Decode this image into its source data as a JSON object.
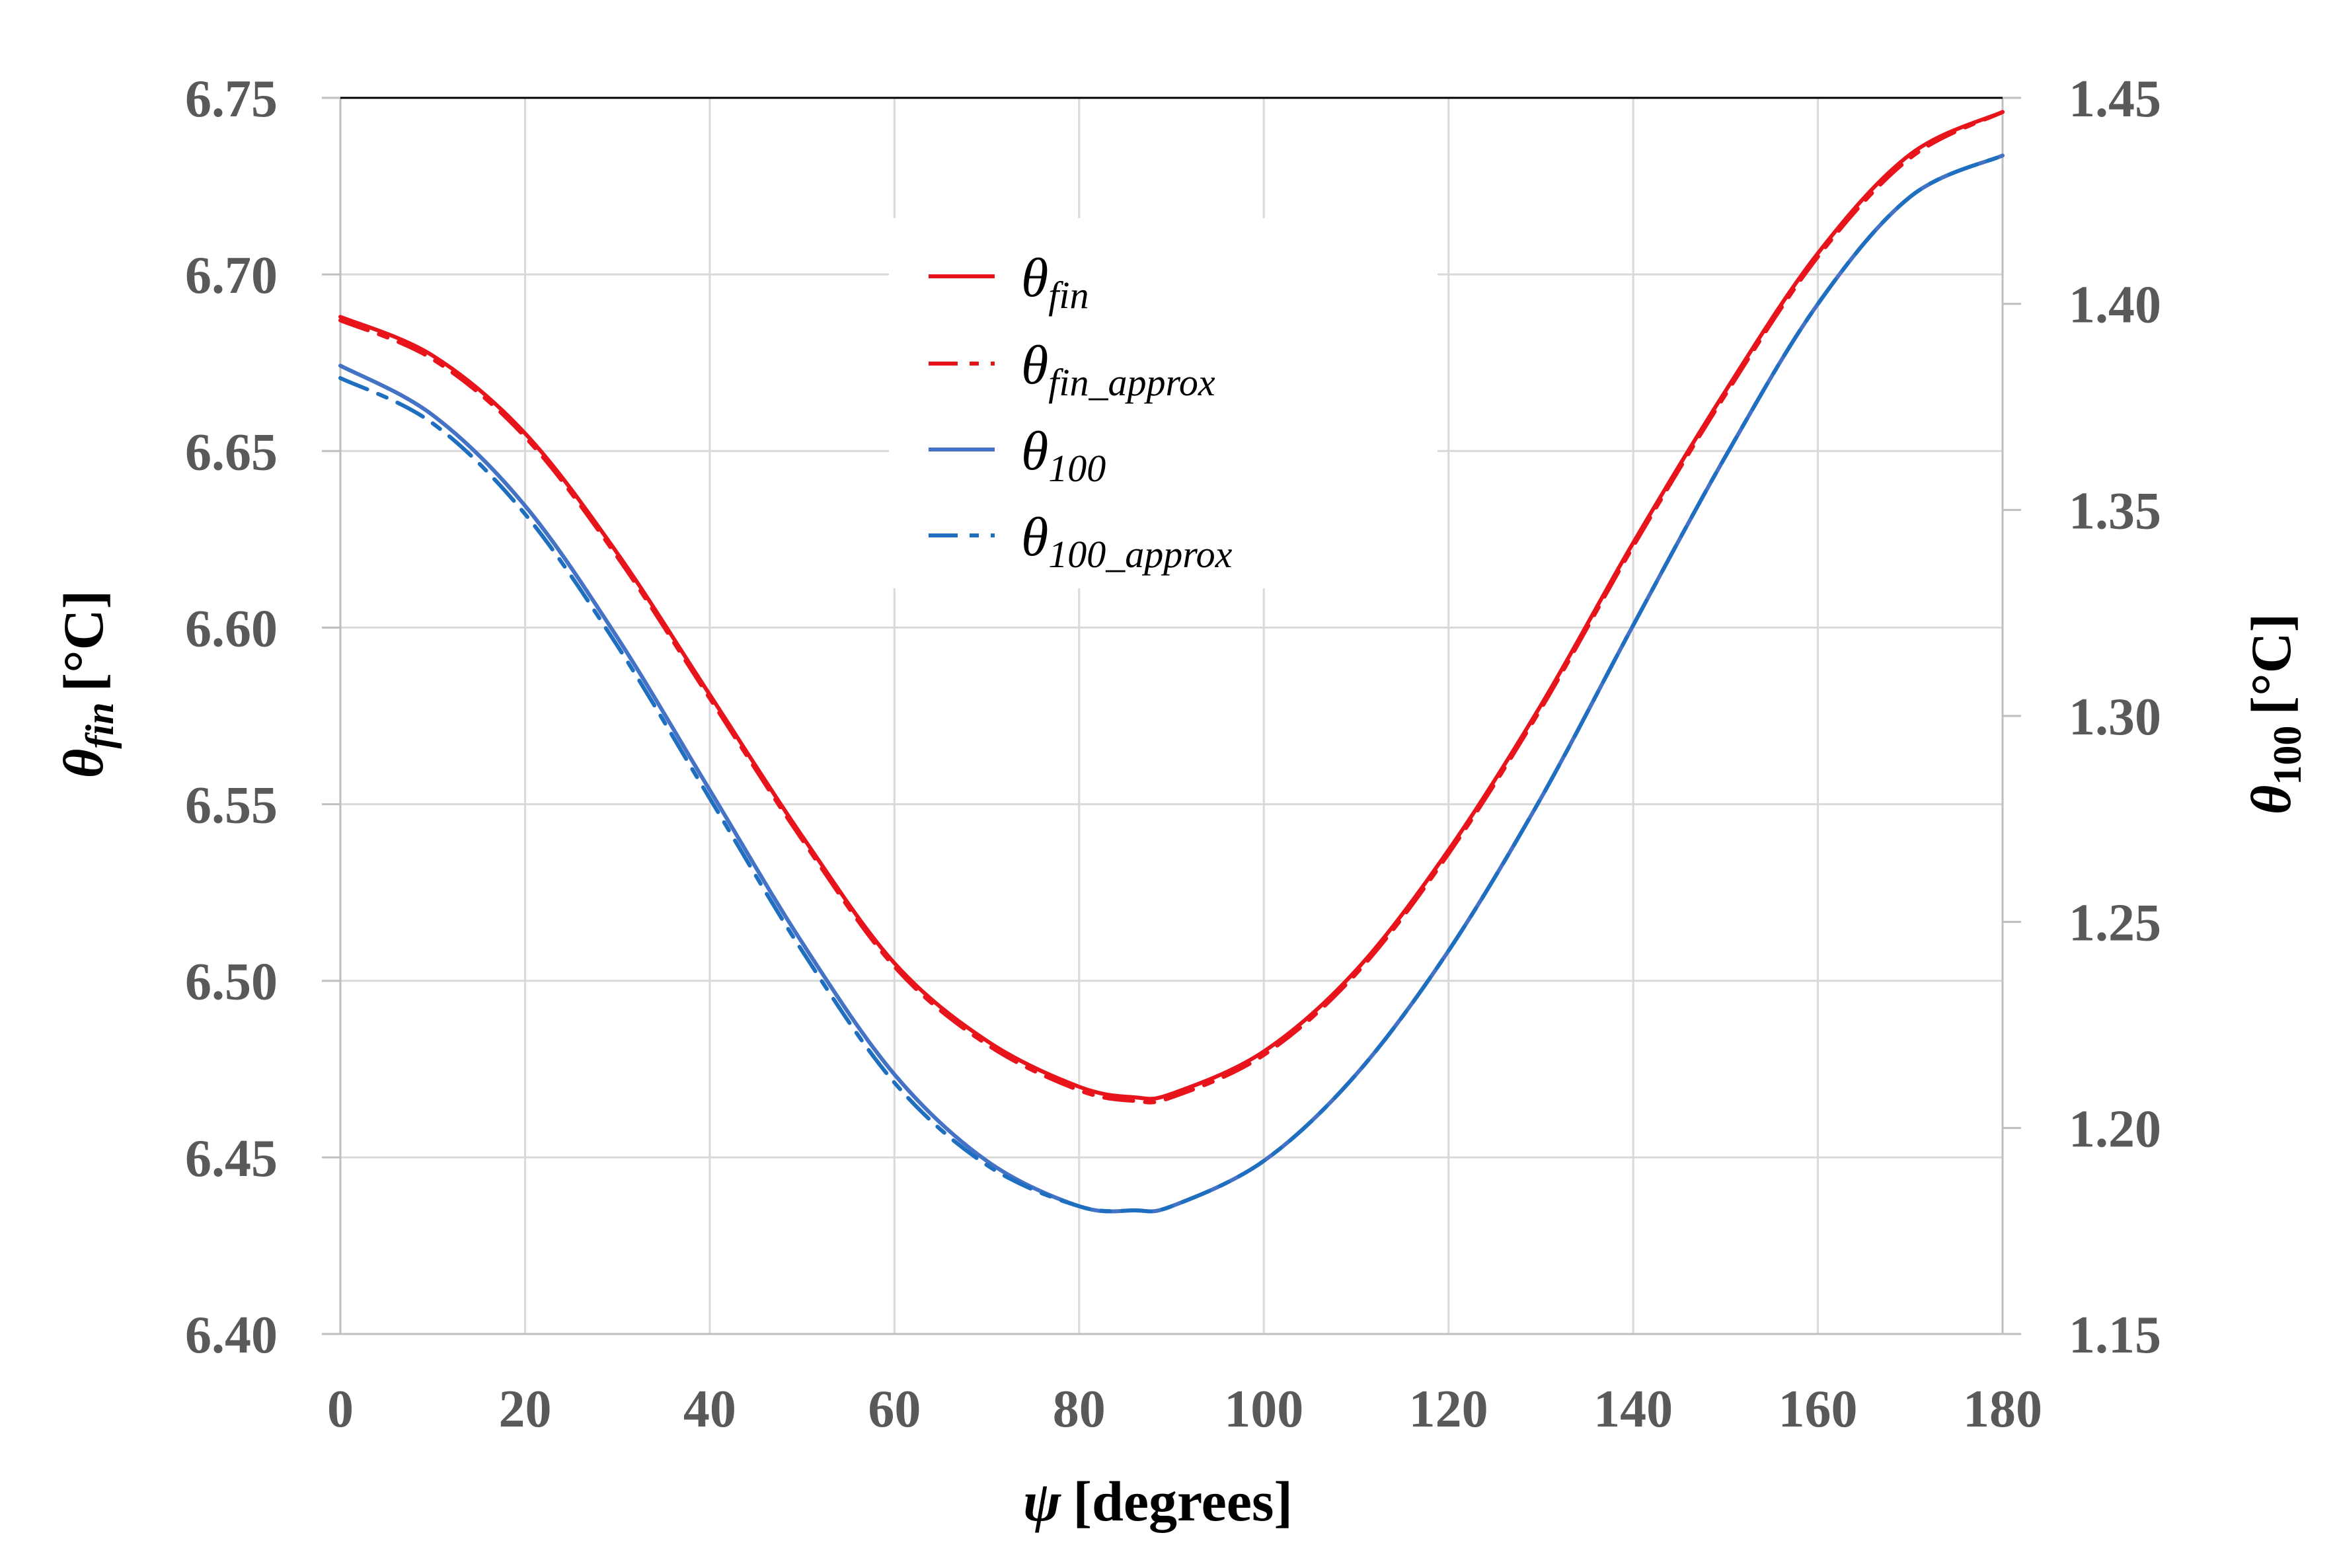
{
  "chart_data": {
    "type": "line",
    "xlabel": {
      "symbol": "ψ",
      "unit": "[degrees]"
    },
    "ylabel_left": {
      "symbol": "θ",
      "sub": "fin",
      "unit": "[°C]"
    },
    "ylabel_right": {
      "symbol": "θ",
      "sub": "100",
      "unit": "[°C]"
    },
    "xlim": [
      0,
      180
    ],
    "ylim_left": [
      6.4,
      6.75
    ],
    "ylim_right": [
      1.15,
      1.45
    ],
    "x_ticks": [
      "0",
      "20",
      "40",
      "60",
      "80",
      "100",
      "120",
      "140",
      "160",
      "180"
    ],
    "y_left_ticks": [
      "6.40",
      "6.45",
      "6.50",
      "6.55",
      "6.60",
      "6.65",
      "6.70",
      "6.75"
    ],
    "y_right_ticks": [
      "1.15",
      "1.20",
      "1.25",
      "1.30",
      "1.35",
      "1.40",
      "1.45"
    ],
    "grid": true,
    "legend_position": "top-center",
    "x": [
      0,
      10,
      20,
      30,
      40,
      50,
      60,
      70,
      80,
      86,
      90,
      100,
      110,
      120,
      130,
      140,
      150,
      160,
      170,
      180
    ],
    "series": [
      {
        "name_symbol": "θ",
        "name_sub": "fin",
        "axis": "left",
        "style": "solid",
        "color": "#e8141b",
        "values": [
          6.688,
          6.677,
          6.655,
          6.621,
          6.581,
          6.541,
          6.505,
          6.483,
          6.47,
          6.467,
          6.468,
          6.48,
          6.503,
          6.537,
          6.578,
          6.624,
          6.667,
          6.706,
          6.734,
          6.746
        ]
      },
      {
        "name_symbol": "θ",
        "name_sub": "fin_approx",
        "axis": "left",
        "style": "dashed",
        "color": "#e8141b",
        "values": [
          6.687,
          6.676,
          6.654,
          6.62,
          6.58,
          6.54,
          6.504,
          6.482,
          6.469,
          6.466,
          6.467,
          6.479,
          6.502,
          6.536,
          6.577,
          6.623,
          6.666,
          6.705,
          6.733,
          6.746
        ]
      },
      {
        "name_symbol": "θ",
        "name_sub": "100",
        "axis": "right",
        "style": "solid",
        "color": "#4472c4",
        "values": [
          1.385,
          1.373,
          1.351,
          1.319,
          1.282,
          1.245,
          1.213,
          1.192,
          1.181,
          1.18,
          1.181,
          1.192,
          1.213,
          1.243,
          1.28,
          1.322,
          1.363,
          1.4,
          1.426,
          1.436
        ]
      },
      {
        "name_symbol": "θ",
        "name_sub": "100_approx",
        "axis": "right",
        "style": "dashed",
        "color": "#1f6fc0",
        "values": [
          1.382,
          1.371,
          1.349,
          1.317,
          1.28,
          1.243,
          1.211,
          1.191,
          1.181,
          1.18,
          1.181,
          1.192,
          1.213,
          1.243,
          1.28,
          1.322,
          1.363,
          1.4,
          1.426,
          1.436
        ]
      }
    ]
  }
}
